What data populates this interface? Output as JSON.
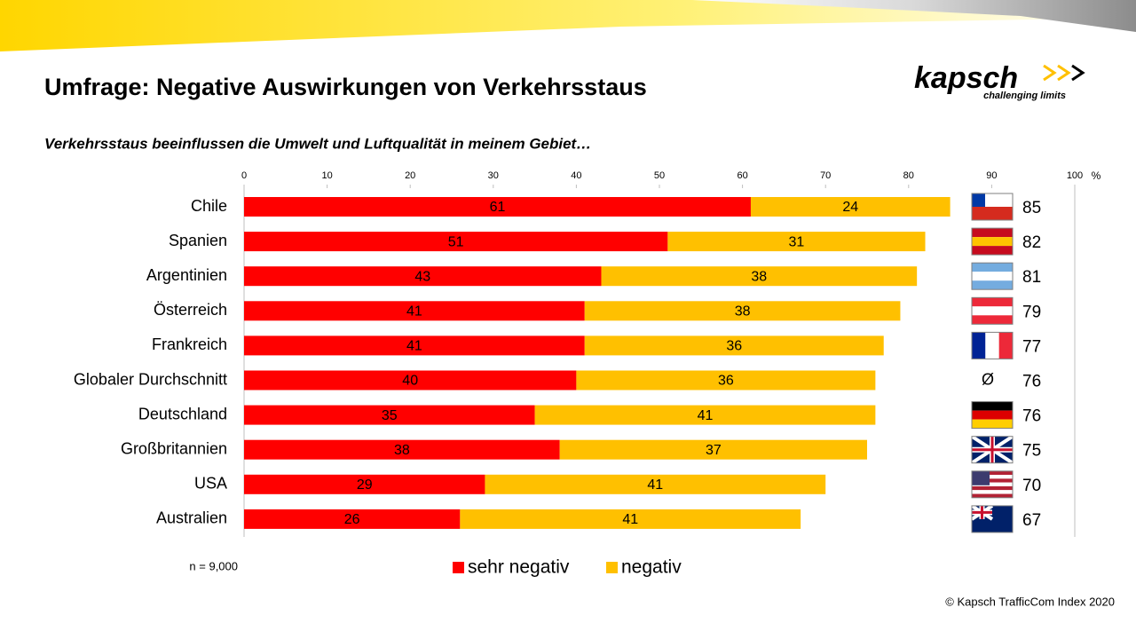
{
  "chart_data": {
    "type": "stacked-bar-horizontal",
    "title": "Umfrage: Negative Auswirkungen von Verkehrsstaus",
    "subtitle": "Verkehrsstaus beeinflussen die Umwelt und Luftqualität in meinem Gebiet…",
    "categories": [
      "Chile",
      "Spanien",
      "Argentinien",
      "Österreich",
      "Frankreich",
      "Globaler Durchschnitt",
      "Deutschland",
      "Großbritannien",
      "USA",
      "Australien"
    ],
    "series": [
      {
        "name": "sehr negativ",
        "color": "#ff0000",
        "values": [
          61,
          51,
          43,
          41,
          41,
          40,
          35,
          38,
          29,
          26
        ]
      },
      {
        "name": "negativ",
        "color": "#ffc000",
        "values": [
          24,
          31,
          38,
          38,
          36,
          36,
          41,
          37,
          41,
          41
        ]
      }
    ],
    "totals": [
      85,
      82,
      81,
      79,
      77,
      76,
      76,
      75,
      70,
      67
    ],
    "total_markers": [
      null,
      null,
      null,
      null,
      null,
      "Ø",
      null,
      null,
      null,
      null
    ],
    "xlim": [
      0,
      100
    ],
    "xticks": [
      0,
      10,
      20,
      30,
      40,
      50,
      60,
      70,
      80,
      90,
      100
    ],
    "xlabel": "%",
    "note": "n = 9,000"
  },
  "logo": {
    "name": "kapsch",
    "tagline": "challenging limits"
  },
  "footer": "© Kapsch TrafficCom Index 2020"
}
